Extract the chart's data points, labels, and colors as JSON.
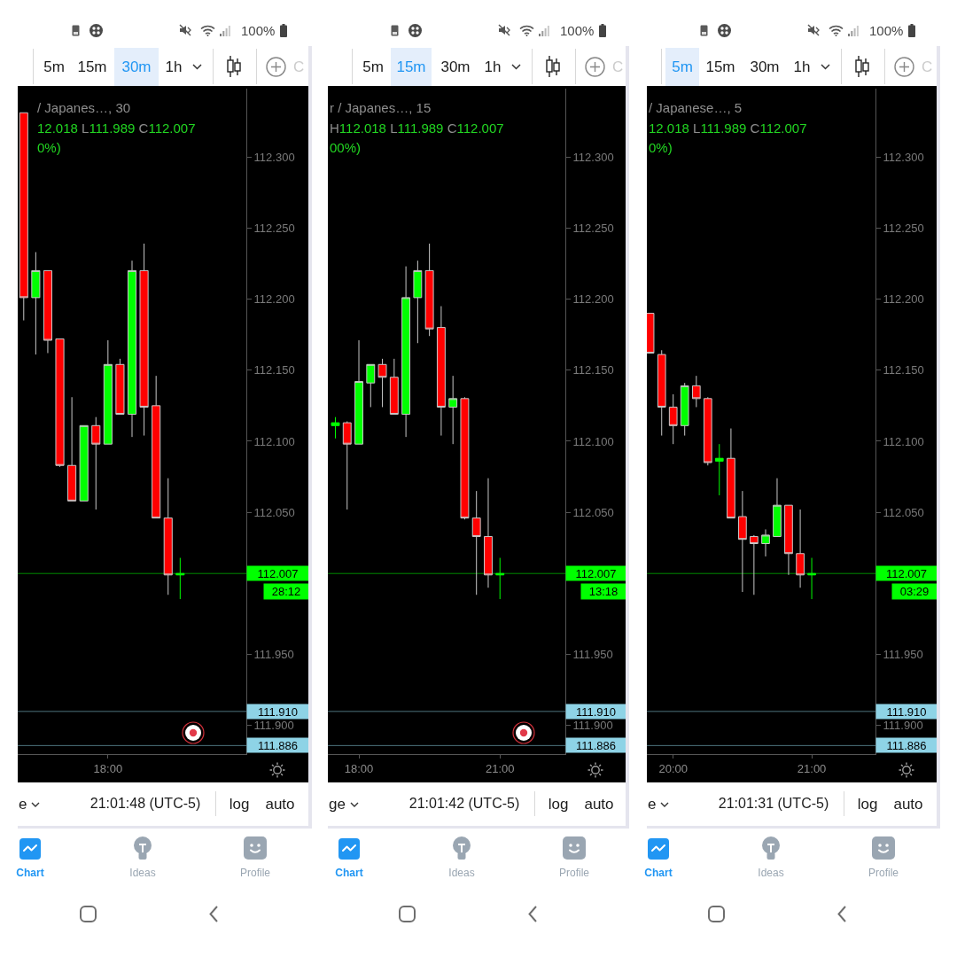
{
  "chart_data": [
    {
      "type": "candlestick",
      "title": "/ Japanes…, 30",
      "subtitle": "12.018 L111.989 C112.007",
      "categories": [
        null,
        null,
        null,
        null,
        null,
        null,
        null,
        "18:00",
        null,
        null,
        null,
        null,
        null,
        null,
        null,
        null,
        null,
        null,
        null
      ],
      "ohlc": [
        [
          112.331,
          112.331,
          112.185,
          112.201
        ],
        [
          112.201,
          112.233,
          112.161,
          112.22
        ],
        [
          112.22,
          112.22,
          112.162,
          112.171
        ],
        [
          112.172,
          112.172,
          112.082,
          112.083
        ],
        [
          112.083,
          112.131,
          112.058,
          112.058
        ],
        [
          112.058,
          112.111,
          112.058,
          112.111
        ],
        [
          112.111,
          112.117,
          112.052,
          112.098
        ],
        [
          112.098,
          112.171,
          112.098,
          112.154
        ],
        [
          112.154,
          112.158,
          112.119,
          112.119
        ],
        [
          112.119,
          112.227,
          112.103,
          112.22
        ],
        [
          112.22,
          112.239,
          112.104,
          112.124
        ],
        [
          112.125,
          112.146,
          112.046,
          112.046
        ],
        [
          112.046,
          112.074,
          111.992,
          112.006
        ],
        [
          112.006,
          112.018,
          111.989,
          112.007
        ],
        null,
        null,
        null,
        null,
        null
      ],
      "colors": [
        "#ff0000",
        "#00ff00",
        "#ff0000",
        "#ff0000",
        "#ff0000",
        "#00ff00",
        "#ff0000",
        "#00ff00",
        "#ff0000",
        "#00ff00",
        "#ff0000",
        "#ff0000",
        "#ff0000",
        "#00ff00",
        null,
        null,
        null,
        null,
        null
      ],
      "ylim": [
        111.88,
        112.348
      ],
      "yticks": [
        {
          "value": 112.3,
          "label": "112.300"
        },
        {
          "value": 112.25,
          "label": "112.250"
        },
        {
          "value": 112.2,
          "label": "112.200"
        },
        {
          "value": 112.15,
          "label": "112.150"
        },
        {
          "value": 112.1,
          "label": "112.100"
        },
        {
          "value": 112.05,
          "label": "112.050"
        },
        {
          "value": 111.95,
          "label": "111.950"
        },
        {
          "value": 111.9,
          "label": "111.900"
        }
      ],
      "ref_lines": [
        {
          "axis": "y",
          "value": 112.007,
          "label": "112.007",
          "color": "#00ff00"
        },
        {
          "axis": "y",
          "value": 111.91,
          "label": "111.910",
          "color": "#8ed3e6"
        },
        {
          "axis": "y",
          "value": 111.886,
          "label": "111.886",
          "color": "#8ed3e6"
        }
      ],
      "annotations": [
        "0%)",
        "28:12",
        "100%",
        "5m",
        "15m",
        "30m",
        "1h",
        "C",
        "e",
        "21:01:48 (UTC-5)",
        "log",
        "auto",
        "Chart",
        "Ideas",
        "Profile"
      ]
    },
    {
      "type": "candlestick",
      "title": "r / Japanes…, 15",
      "subtitle": "H112.018 L111.989 C112.007",
      "x": [
        17.5,
        17.75,
        18,
        18.25,
        18.5,
        18.75,
        19,
        19.25,
        19.5,
        19.75,
        20,
        20.25,
        20.5,
        20.75,
        21
      ],
      "ohlc": [
        [
          112.111,
          112.117,
          112.102,
          112.113
        ],
        [
          112.113,
          112.114,
          112.052,
          112.098
        ],
        [
          112.098,
          112.171,
          112.098,
          112.142
        ],
        [
          112.141,
          112.154,
          112.124,
          112.154
        ],
        [
          112.154,
          112.158,
          112.124,
          112.145
        ],
        [
          112.145,
          112.158,
          112.119,
          112.119
        ],
        [
          112.119,
          112.223,
          112.103,
          112.201
        ],
        [
          112.201,
          112.227,
          112.169,
          112.22
        ],
        [
          112.22,
          112.239,
          112.174,
          112.179
        ],
        [
          112.18,
          112.195,
          112.104,
          112.124
        ],
        [
          112.124,
          112.146,
          112.098,
          112.13
        ],
        [
          112.13,
          112.131,
          112.045,
          112.046
        ],
        [
          112.046,
          112.065,
          111.992,
          112.033
        ],
        [
          112.033,
          112.074,
          111.997,
          112.006
        ],
        [
          112.006,
          112.018,
          111.989,
          112.007
        ]
      ],
      "colors": [
        "#00ff00",
        "#ff0000",
        "#00ff00",
        "#00ff00",
        "#ff0000",
        "#ff0000",
        "#00ff00",
        "#00ff00",
        "#ff0000",
        "#ff0000",
        "#00ff00",
        "#ff0000",
        "#ff0000",
        "#ff0000",
        "#00ff00"
      ],
      "xlim": [
        17.34,
        22.39
      ],
      "xticks": [
        {
          "value": 18,
          "label": "18:00"
        },
        {
          "value": 21,
          "label": "21:00"
        }
      ],
      "ylim": [
        111.88,
        112.348
      ],
      "yticks": [
        {
          "value": 112.3,
          "label": "112.300"
        },
        {
          "value": 112.25,
          "label": "112.250"
        },
        {
          "value": 112.2,
          "label": "112.200"
        },
        {
          "value": 112.15,
          "label": "112.150"
        },
        {
          "value": 112.1,
          "label": "112.100"
        },
        {
          "value": 112.05,
          "label": "112.050"
        },
        {
          "value": 111.95,
          "label": "111.950"
        },
        {
          "value": 111.9,
          "label": "111.900"
        }
      ],
      "ref_lines": [
        {
          "axis": "y",
          "value": 112.007,
          "label": "112.007",
          "color": "#00ff00"
        },
        {
          "axis": "y",
          "value": 111.91,
          "label": "111.910",
          "color": "#8ed3e6"
        },
        {
          "axis": "y",
          "value": 111.886,
          "label": "111.886",
          "color": "#8ed3e6"
        }
      ],
      "annotations": [
        "00%)",
        "13:18",
        "100%",
        "5m",
        "15m",
        "30m",
        "1h",
        "C",
        "ge",
        "21:01:42 (UTC-5)",
        "log",
        "auto",
        "Chart",
        "Ideas",
        "Profile"
      ]
    },
    {
      "type": "candlestick",
      "title": "/ Japanese…, 5",
      "subtitle": "12.018 L111.989 C112.007",
      "x": [
        19.833,
        19.917,
        20,
        20.083,
        20.167,
        20.25,
        20.333,
        20.417,
        20.5,
        20.583,
        20.667,
        20.75,
        20.833,
        20.917,
        21
      ],
      "ohlc": [
        [
          112.19,
          112.19,
          112.162,
          112.162
        ],
        [
          112.161,
          112.164,
          112.104,
          112.124
        ],
        [
          112.124,
          112.133,
          112.098,
          112.111
        ],
        [
          112.111,
          112.141,
          112.104,
          112.139
        ],
        [
          112.139,
          112.146,
          112.124,
          112.13
        ],
        [
          112.13,
          112.131,
          112.083,
          112.085
        ],
        [
          112.086,
          112.098,
          112.062,
          112.088
        ],
        [
          112.088,
          112.109,
          112.046,
          112.046
        ],
        [
          112.047,
          112.065,
          111.994,
          112.031
        ],
        [
          112.033,
          112.034,
          111.992,
          112.028
        ],
        [
          112.028,
          112.038,
          112.019,
          112.034
        ],
        [
          112.033,
          112.074,
          112.033,
          112.055
        ],
        [
          112.055,
          112.055,
          112.006,
          112.021
        ],
        [
          112.021,
          112.052,
          111.997,
          112.006
        ],
        [
          112.006,
          112.018,
          111.989,
          112.007
        ]
      ],
      "colors": [
        "#ff0000",
        "#ff0000",
        "#ff0000",
        "#00ff00",
        "#ff0000",
        "#ff0000",
        "#00ff00",
        "#ff0000",
        "#ff0000",
        "#ff0000",
        "#00ff00",
        "#00ff00",
        "#ff0000",
        "#ff0000",
        "#00ff00"
      ],
      "xlim": [
        19.81,
        21.46
      ],
      "xticks": [
        {
          "value": 20,
          "label": "20:00"
        },
        {
          "value": 21,
          "label": "21:00"
        }
      ],
      "ylim": [
        111.88,
        112.348
      ],
      "yticks": [
        {
          "value": 112.3,
          "label": "112.300"
        },
        {
          "value": 112.25,
          "label": "112.250"
        },
        {
          "value": 112.2,
          "label": "112.200"
        },
        {
          "value": 112.15,
          "label": "112.150"
        },
        {
          "value": 112.1,
          "label": "112.100"
        },
        {
          "value": 112.05,
          "label": "112.050"
        },
        {
          "value": 111.95,
          "label": "111.950"
        },
        {
          "value": 111.9,
          "label": "111.900"
        }
      ],
      "ref_lines": [
        {
          "axis": "y",
          "value": 112.007,
          "label": "112.007",
          "color": "#00ff00"
        },
        {
          "axis": "y",
          "value": 111.91,
          "label": "111.910",
          "color": "#8ed3e6"
        },
        {
          "axis": "y",
          "value": 111.886,
          "label": "111.886",
          "color": "#8ed3e6"
        }
      ],
      "annotations": [
        "0%)",
        "03:29",
        "100%",
        "5m",
        "15m",
        "30m",
        "1h",
        "C",
        "e",
        "21:01:31 (UTC-5)",
        "log",
        "auto",
        "Chart",
        "Ideas",
        "Profile"
      ]
    }
  ]
}
